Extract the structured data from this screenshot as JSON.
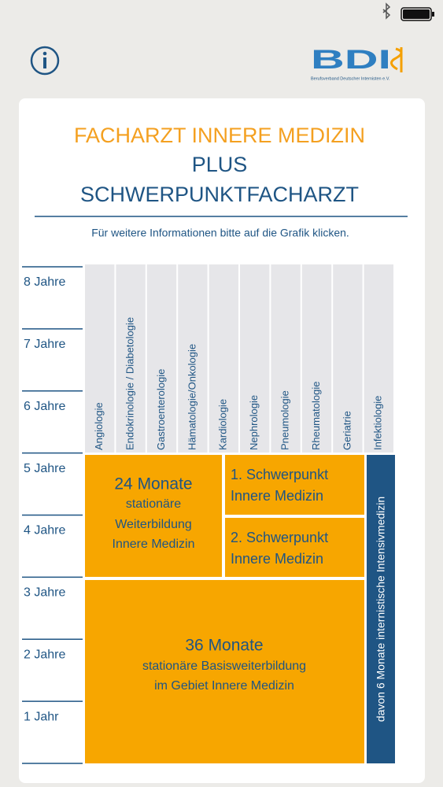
{
  "header": {
    "logo": "BDI",
    "logo_subtitle": "Berufsverband Deutscher Internisten e.V."
  },
  "title": {
    "line1": "FACHARZT INNERE MEDIZIN",
    "line2": "PLUS",
    "line3": "SCHWERPUNKTFACHARZT"
  },
  "instruction": "Für weitere Informationen bitte auf die Grafik klicken.",
  "years": [
    "8 Jahre",
    "7 Jahre",
    "6 Jahre",
    "5 Jahre",
    "4 Jahre",
    "3 Jahre",
    "2 Jahre",
    "1 Jahr"
  ],
  "specialties": [
    "Angiologie",
    "Endokrinologie / Diabetologie",
    "Gastroenterologie",
    "Hämatologie/Onkologie",
    "Kardiologie",
    "Nephrologie",
    "Pneumologie",
    "Rheumatologie",
    "Geriatrie",
    "Infektiologie"
  ],
  "blocks": {
    "stationary": {
      "heading": "24 Monate",
      "lines": [
        "stationäre",
        "Weiterbildung",
        "Innere Medizin"
      ]
    },
    "focus1": {
      "lines": [
        "1. Schwerpunkt",
        "Innere Medizin"
      ]
    },
    "focus2": {
      "lines": [
        "2. Schwerpunkt",
        "Innere Medizin"
      ]
    },
    "basic": {
      "heading": "36 Monate",
      "lines": [
        "stationäre Basisweiterbildung",
        "im Gebiet Innere Medizin"
      ]
    },
    "intensive": "davon 6 Monate internistische Intensivmedizin"
  }
}
